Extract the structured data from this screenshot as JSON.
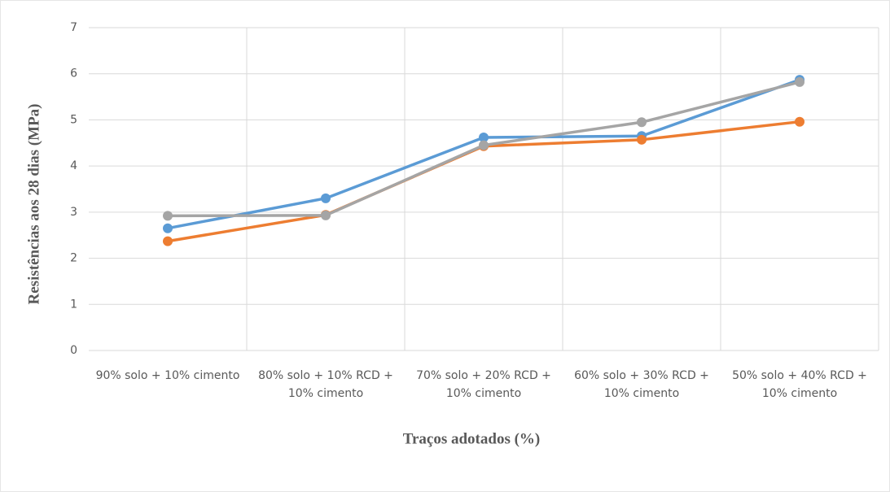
{
  "chart_data": {
    "type": "line",
    "y_label": "Resistências aos 28 dias (MPa)",
    "x_label": "Traços adotados (%)",
    "categories": [
      "90% solo + 10% cimento",
      "80% solo + 10% RCD + 10% cimento",
      "70% solo + 20% RCD + 10% cimento",
      "60% solo + 30% RCD + 10% cimento",
      "50% solo + 40% RCD + 10% cimento"
    ],
    "series": [
      {
        "color": "#5b9bd5",
        "values": [
          2.65,
          3.3,
          4.62,
          4.65,
          5.87
        ]
      },
      {
        "color": "#ed7d31",
        "values": [
          2.37,
          2.94,
          4.43,
          4.57,
          4.96
        ]
      },
      {
        "color": "#a5a5a5",
        "values": [
          2.92,
          2.93,
          4.45,
          4.95,
          5.82
        ]
      }
    ],
    "ylim": [
      0,
      7
    ],
    "yticks": [
      0,
      1,
      2,
      3,
      4,
      5,
      6,
      7
    ],
    "grid": true
  }
}
